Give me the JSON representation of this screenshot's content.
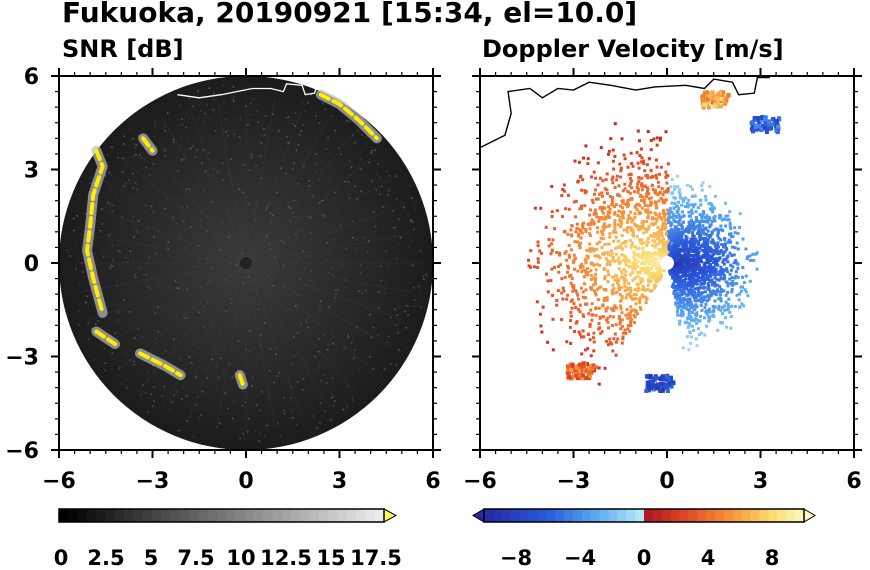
{
  "figure": {
    "title": "Fukuoka, 20190921 [15:34, el=10.0]"
  },
  "chart_data": [
    {
      "type": "heatmap",
      "panel": "left",
      "title": "SNR [dB]",
      "xlabel": "",
      "ylabel": "",
      "xlim": [
        -6,
        6
      ],
      "ylim": [
        -6,
        6
      ],
      "xticks": [
        -6,
        -3,
        0,
        3,
        6
      ],
      "yticks": [
        -6,
        -3,
        0,
        3,
        6
      ],
      "x_tick_labels": [
        "−6",
        "−3",
        "0",
        "3",
        "6"
      ],
      "y_tick_labels": [
        "−6",
        "−3",
        "0",
        "3",
        "6"
      ],
      "range_max": 6,
      "background_color": "#1a1a1a",
      "echo_color": "#ffee00",
      "colorbar": {
        "min": 0,
        "max": 17.5,
        "ticks": [
          0,
          2.5,
          5,
          7.5,
          10,
          12.5,
          15,
          17.5
        ],
        "tick_labels": [
          "0",
          "2.5",
          "5",
          "7.5",
          "10",
          "12.5",
          "15",
          "17.5"
        ],
        "extend": "max",
        "colormap": "grayscale"
      },
      "echo_bands": [
        {
          "path": [
            [
              -4.8,
              3.6
            ],
            [
              -4.6,
              3.1
            ],
            [
              -4.9,
              2.2
            ],
            [
              -5.0,
              1.2
            ],
            [
              -5.1,
              0.4
            ],
            [
              -4.9,
              -0.5
            ],
            [
              -4.6,
              -1.6
            ]
          ]
        },
        {
          "path": [
            [
              -3.3,
              4.0
            ],
            [
              -3.0,
              3.6
            ]
          ]
        },
        {
          "path": [
            [
              2.4,
              5.4
            ],
            [
              3.0,
              5.1
            ],
            [
              3.6,
              4.6
            ],
            [
              4.2,
              4.0
            ]
          ]
        },
        {
          "path": [
            [
              -4.8,
              -2.2
            ],
            [
              -4.2,
              -2.6
            ]
          ]
        },
        {
          "path": [
            [
              -3.4,
              -2.9
            ],
            [
              -2.6,
              -3.3
            ],
            [
              -2.1,
              -3.6
            ]
          ]
        },
        {
          "path": [
            [
              -0.2,
              -3.6
            ],
            [
              -0.1,
              -3.9
            ]
          ]
        }
      ]
    },
    {
      "type": "heatmap",
      "panel": "right",
      "title": "Doppler Velocity [m/s]",
      "xlabel": "",
      "ylabel": "",
      "xlim": [
        -6,
        6
      ],
      "ylim": [
        -6,
        6
      ],
      "xticks": [
        -6,
        -3,
        0,
        3,
        6
      ],
      "yticks": [
        -6,
        -3,
        0,
        3,
        6
      ],
      "x_tick_labels": [
        "−6",
        "−3",
        "0",
        "3",
        "6"
      ],
      "y_tick_labels": [
        "−6",
        "−3",
        "0",
        "3",
        "6"
      ],
      "colorbar": {
        "min": -10,
        "max": 10,
        "ticks": [
          -8,
          -4,
          0,
          4,
          8
        ],
        "tick_labels": [
          "−8",
          "−4",
          "0",
          "4",
          "8"
        ],
        "extend": "both",
        "colormap": "blue-white-red-yellow"
      },
      "velocity_field": {
        "center": [
          0,
          0
        ],
        "receding_sector_deg": [
          90,
          240
        ],
        "approaching_sector_deg": [
          -80,
          90
        ],
        "max_speed": 9
      },
      "echo_patches": [
        {
          "center": [
            3.1,
            4.5
          ],
          "velocity": -6
        },
        {
          "center": [
            1.5,
            5.3
          ],
          "velocity": 6
        },
        {
          "center": [
            -2.8,
            -3.4
          ],
          "velocity": 4
        },
        {
          "center": [
            -0.3,
            -3.8
          ],
          "velocity": -7
        }
      ]
    }
  ],
  "colors": {
    "coastline": "#ffffff",
    "coastline_right": "#000000",
    "zero_velocity": "#ffffff"
  }
}
